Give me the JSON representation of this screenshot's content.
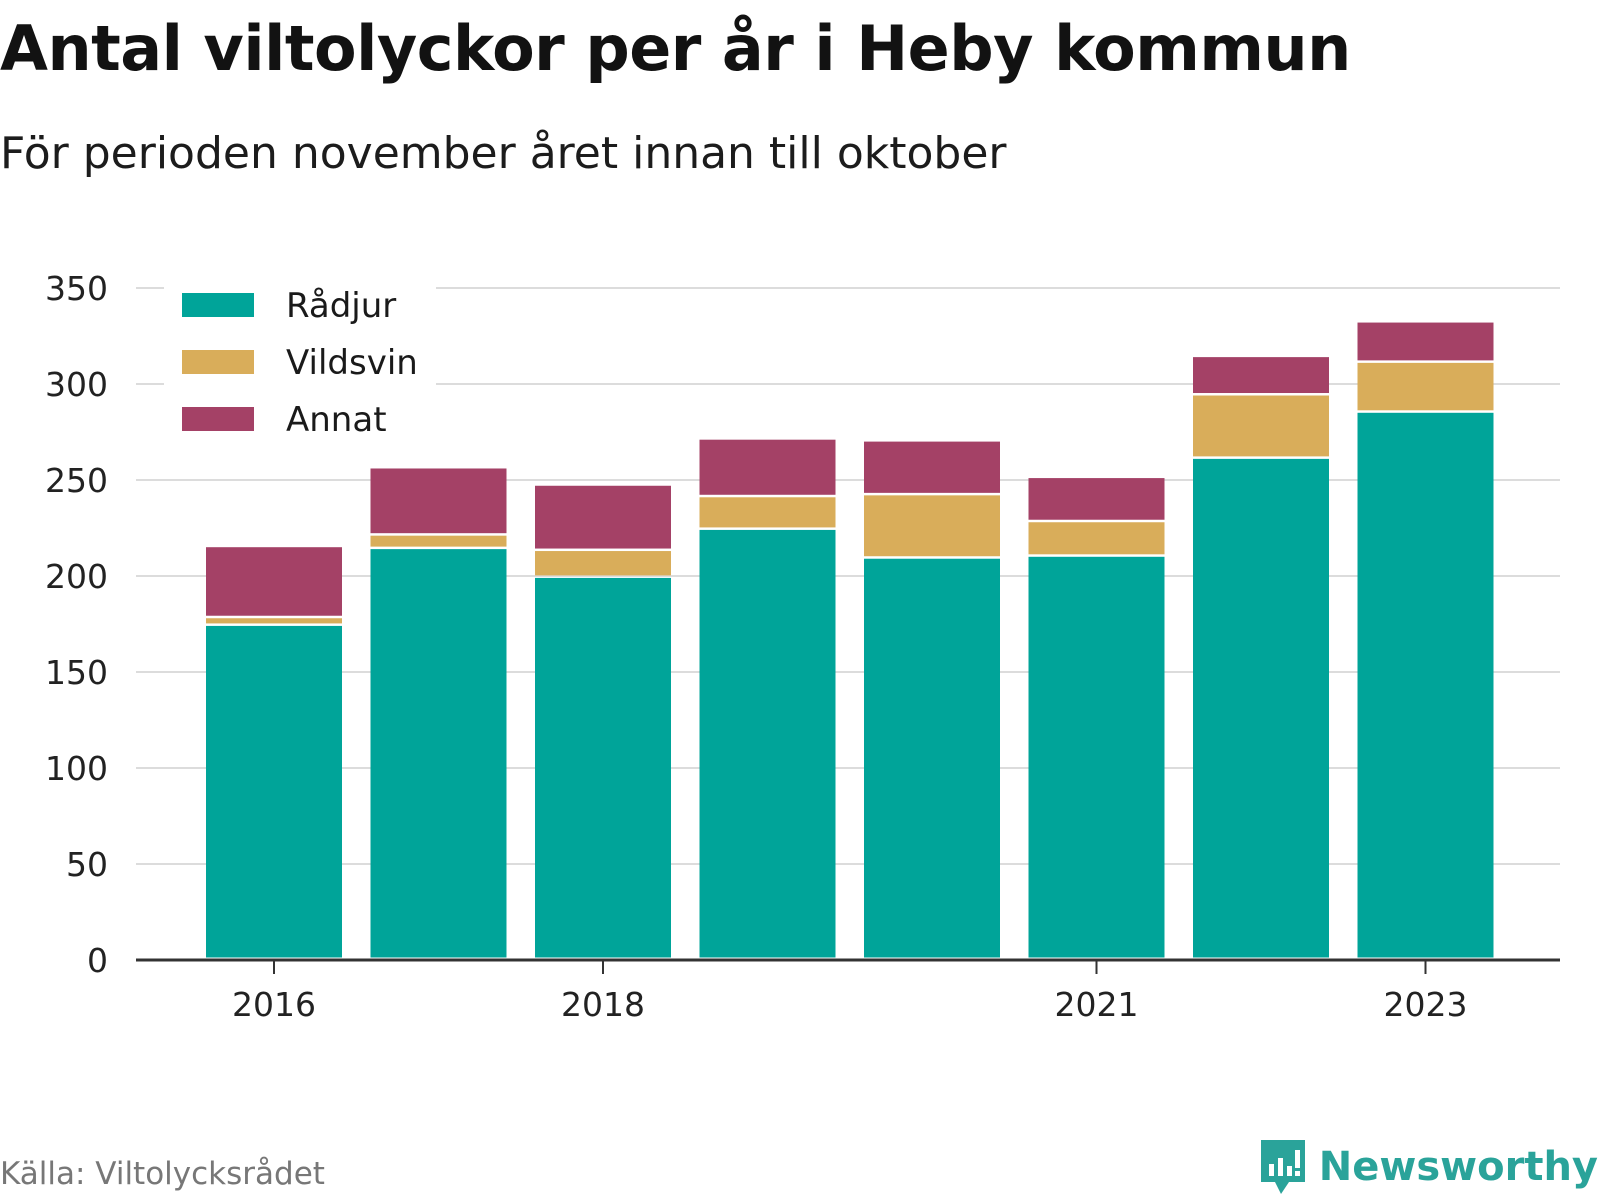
{
  "header": {
    "title": "Antal viltolyckor per år i Heby kommun",
    "subtitle": "För perioden november året innan till oktober"
  },
  "footer": {
    "source": "Källa: Viltolycksrådet",
    "brand": "Newsworthy",
    "brand_icon": "newsworthy-logo-icon",
    "brand_color": "#2aa39a"
  },
  "chart_data": {
    "type": "bar",
    "stacked": true,
    "categories": [
      "2016",
      "2017",
      "2018",
      "2019",
      "2020",
      "2021",
      "2022",
      "2023"
    ],
    "x_tick_labels": [
      "2016",
      "2018",
      "2021",
      "2023"
    ],
    "series": [
      {
        "name": "Rådjur",
        "color": "#00a499",
        "values": [
          174,
          214,
          199,
          224,
          209,
          210,
          261,
          285
        ]
      },
      {
        "name": "Vildsvin",
        "color": "#d9ad5a",
        "values": [
          4,
          7,
          14,
          17,
          33,
          18,
          33,
          26
        ]
      },
      {
        "name": "Annat",
        "color": "#a44166",
        "values": [
          37,
          35,
          34,
          30,
          28,
          23,
          20,
          21
        ]
      }
    ],
    "ylim": [
      0,
      350
    ],
    "yticks": [
      0,
      50,
      100,
      150,
      200,
      250,
      300,
      350
    ],
    "grid": true,
    "legend": "top-left",
    "xlabel": "",
    "ylabel": ""
  }
}
